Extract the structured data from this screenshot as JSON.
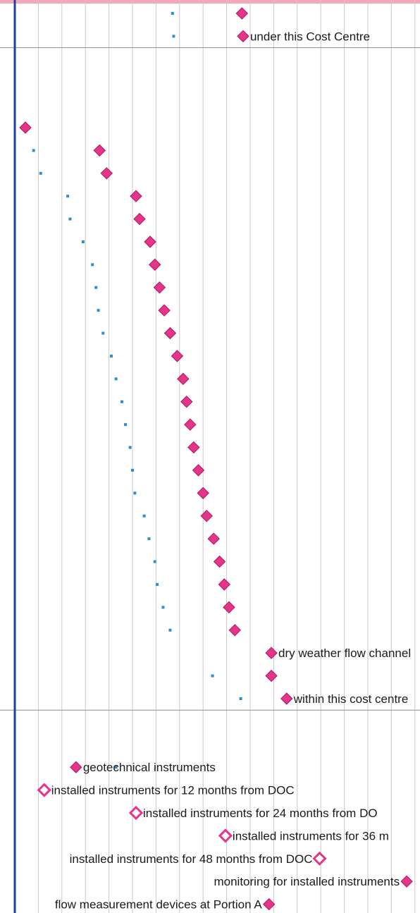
{
  "chart_data": {
    "type": "scatter",
    "title": "",
    "xlabel": "",
    "ylabel": "",
    "colors": {
      "milestone": "#e5358b",
      "progress_dot": "#2a8fd1",
      "axis": "#1f3fa6",
      "grid": "#c9c9c9"
    },
    "milestones": [
      {
        "row": 1,
        "x": 19.3,
        "style": "solid",
        "label": ""
      },
      {
        "row": 2,
        "x": 19.4,
        "style": "solid",
        "label": "under this Cost Centre"
      },
      {
        "row": 6,
        "x": 0.9,
        "style": "solid",
        "label": ""
      },
      {
        "row": 7,
        "x": 7.2,
        "style": "solid",
        "label": ""
      },
      {
        "row": 8,
        "x": 7.8,
        "style": "solid",
        "label": ""
      },
      {
        "row": 9,
        "x": 10.3,
        "style": "solid",
        "label": ""
      },
      {
        "row": 10,
        "x": 10.6,
        "style": "solid",
        "label": ""
      },
      {
        "row": 11,
        "x": 11.5,
        "style": "solid",
        "label": ""
      },
      {
        "row": 12,
        "x": 11.9,
        "style": "solid",
        "label": ""
      },
      {
        "row": 13,
        "x": 12.3,
        "style": "solid",
        "label": ""
      },
      {
        "row": 14,
        "x": 12.7,
        "style": "solid",
        "label": ""
      },
      {
        "row": 15,
        "x": 13.2,
        "style": "solid",
        "label": ""
      },
      {
        "row": 16,
        "x": 13.8,
        "style": "solid",
        "label": ""
      },
      {
        "row": 17,
        "x": 14.3,
        "style": "solid",
        "label": ""
      },
      {
        "row": 18,
        "x": 14.6,
        "style": "solid",
        "label": ""
      },
      {
        "row": 19,
        "x": 14.9,
        "style": "solid",
        "label": ""
      },
      {
        "row": 20,
        "x": 15.2,
        "style": "solid",
        "label": ""
      },
      {
        "row": 21,
        "x": 15.6,
        "style": "solid",
        "label": ""
      },
      {
        "row": 22,
        "x": 16.0,
        "style": "solid",
        "label": ""
      },
      {
        "row": 23,
        "x": 16.3,
        "style": "solid",
        "label": ""
      },
      {
        "row": 24,
        "x": 16.9,
        "style": "solid",
        "label": ""
      },
      {
        "row": 25,
        "x": 17.4,
        "style": "solid",
        "label": ""
      },
      {
        "row": 26,
        "x": 17.8,
        "style": "solid",
        "label": ""
      },
      {
        "row": 27,
        "x": 18.2,
        "style": "solid",
        "label": ""
      },
      {
        "row": 28,
        "x": 18.7,
        "style": "solid",
        "label": ""
      },
      {
        "row": 29,
        "x": 21.8,
        "style": "solid",
        "label": "dry weather flow channel"
      },
      {
        "row": 30,
        "x": 21.8,
        "style": "solid",
        "label": ""
      },
      {
        "row": 31,
        "x": 23.1,
        "style": "solid",
        "label": "within this cost centre"
      },
      {
        "row": 34,
        "x": 5.2,
        "style": "solid",
        "label": "geotechnical instruments"
      },
      {
        "row": 35,
        "x": 2.5,
        "style": "hollow",
        "label": "installed instruments for 12 months from DOC"
      },
      {
        "row": 36,
        "x": 10.3,
        "style": "hollow",
        "label": "installed instruments for 24 months from DO"
      },
      {
        "row": 37,
        "x": 17.9,
        "style": "hollow",
        "label": "installed instruments for 36 m"
      },
      {
        "row": 38,
        "x": 25.9,
        "style": "hollow",
        "label": "installed instruments for 48 months from DOC"
      },
      {
        "row": 39,
        "x": 33.3,
        "style": "solid",
        "label": "monitoring for installed instruments"
      },
      {
        "row": 40,
        "x": 21.6,
        "style": "solid",
        "label": "flow measurement devices at Portion A"
      }
    ],
    "progress_dots": [
      {
        "row": 1,
        "x": 13.4
      },
      {
        "row": 2,
        "x": 13.5
      },
      {
        "row": 7,
        "x": 1.6
      },
      {
        "row": 8,
        "x": 2.2
      },
      {
        "row": 9,
        "x": 4.5
      },
      {
        "row": 10,
        "x": 4.7
      },
      {
        "row": 11,
        "x": 5.8
      },
      {
        "row": 12,
        "x": 6.6
      },
      {
        "row": 13,
        "x": 6.9
      },
      {
        "row": 14,
        "x": 7.1
      },
      {
        "row": 15,
        "x": 7.5
      },
      {
        "row": 16,
        "x": 8.2
      },
      {
        "row": 17,
        "x": 8.6
      },
      {
        "row": 18,
        "x": 9.1
      },
      {
        "row": 19,
        "x": 9.4
      },
      {
        "row": 20,
        "x": 9.8
      },
      {
        "row": 21,
        "x": 10.0
      },
      {
        "row": 22,
        "x": 10.2
      },
      {
        "row": 23,
        "x": 11.0
      },
      {
        "row": 24,
        "x": 11.4
      },
      {
        "row": 25,
        "x": 11.9
      },
      {
        "row": 26,
        "x": 12.1
      },
      {
        "row": 27,
        "x": 12.6
      },
      {
        "row": 28,
        "x": 13.2
      },
      {
        "row": 30,
        "x": 16.8
      },
      {
        "row": 31,
        "x": 19.2
      },
      {
        "row": 34,
        "x": 8.6
      }
    ],
    "section_breaks_after_row": [
      2,
      31
    ],
    "xlim": [
      -1,
      34
    ],
    "row_count": 40,
    "grid": true,
    "legend": "none"
  }
}
